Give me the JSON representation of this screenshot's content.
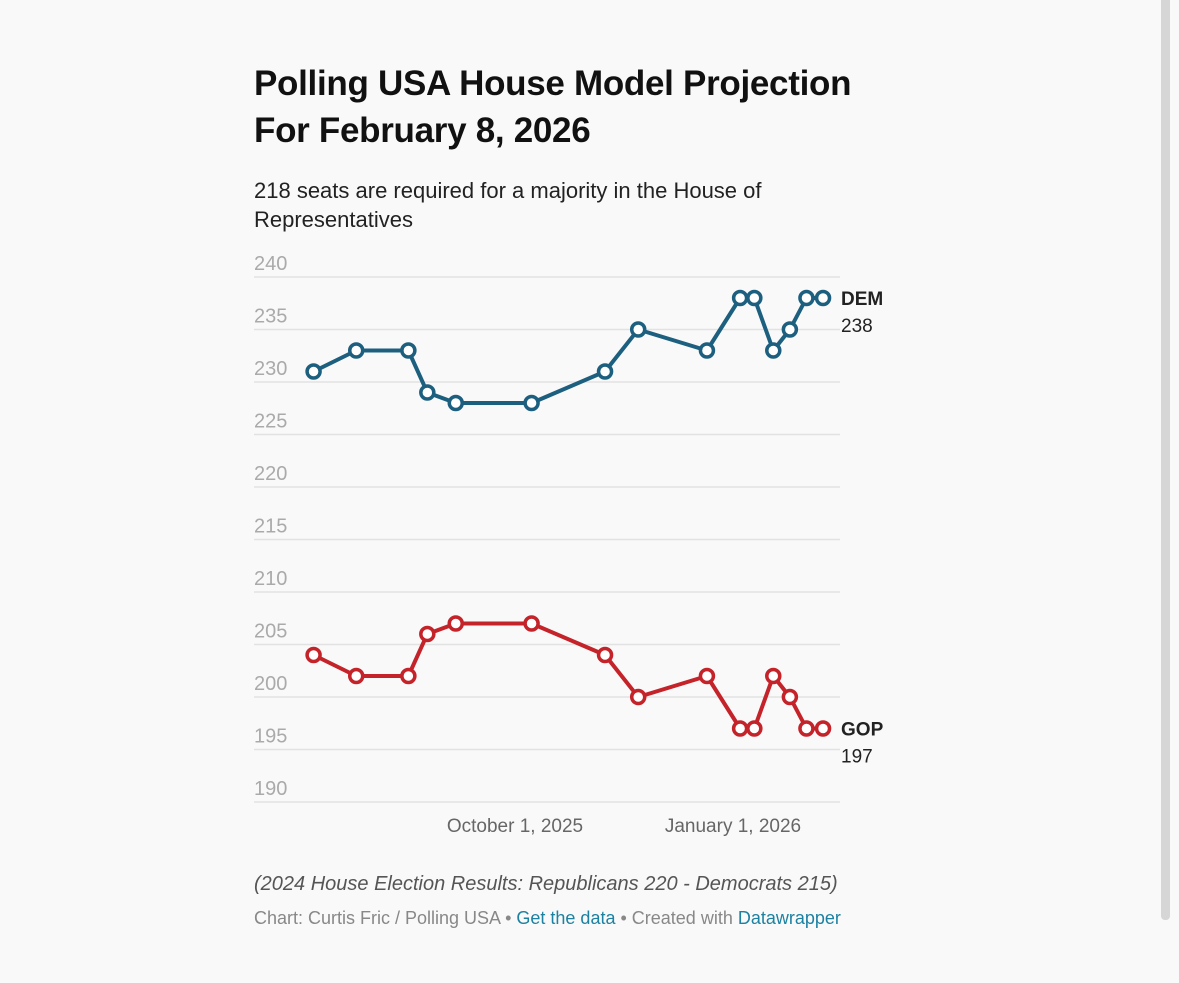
{
  "header": {
    "title_line1": "Polling USA House Model Projection",
    "title_line2": "For February 8, 2026",
    "subtitle": "218 seats are required for a majority in the House of Representatives"
  },
  "footer": {
    "note": "(2024 House Election Results: Republicans 220 - Democrats 215)",
    "credit_prefix": "Chart: Curtis Fric / Polling USA",
    "separator": " • ",
    "get_data_label": "Get the data",
    "created_with_label": "Created with",
    "datawrapper_label": "Datawrapper"
  },
  "colors": {
    "dem": "#1d5f7f",
    "gop": "#c4232a",
    "grid": "#e2e2e2",
    "tick_label": "#aaaaaa",
    "link": "#1d81a2"
  },
  "chart_data": {
    "type": "line",
    "title": "Polling USA House Model Projection For February 8, 2026",
    "subtitle": "218 seats are required for a majority in the House of Representatives",
    "xlabel": "",
    "ylabel": "",
    "ylim": [
      190,
      240
    ],
    "yticks": [
      240,
      235,
      230,
      225,
      220,
      215,
      210,
      205,
      200,
      195,
      190
    ],
    "xlim": [
      "2025-06-12",
      "2026-02-15"
    ],
    "xticks": [
      {
        "date": "2025-10-01",
        "label": "October 1, 2025"
      },
      {
        "date": "2026-01-01",
        "label": "January 1, 2026"
      }
    ],
    "grid": true,
    "legend": "direct-labels-right",
    "x": [
      "2025-07-08",
      "2025-07-26",
      "2025-08-17",
      "2025-08-25",
      "2025-09-06",
      "2025-10-08",
      "2025-11-08",
      "2025-11-22",
      "2025-12-21",
      "2026-01-04",
      "2026-01-10",
      "2026-01-18",
      "2026-01-25",
      "2026-02-01",
      "2026-02-08"
    ],
    "series": [
      {
        "name": "DEM",
        "last_value_label": "238",
        "values": [
          231,
          233,
          233,
          229,
          228,
          228,
          231,
          235,
          233,
          238,
          238,
          233,
          235,
          238,
          238
        ]
      },
      {
        "name": "GOP",
        "last_value_label": "197",
        "values": [
          204,
          202,
          202,
          206,
          207,
          207,
          204,
          200,
          202,
          197,
          197,
          202,
          200,
          197,
          197
        ]
      }
    ]
  }
}
